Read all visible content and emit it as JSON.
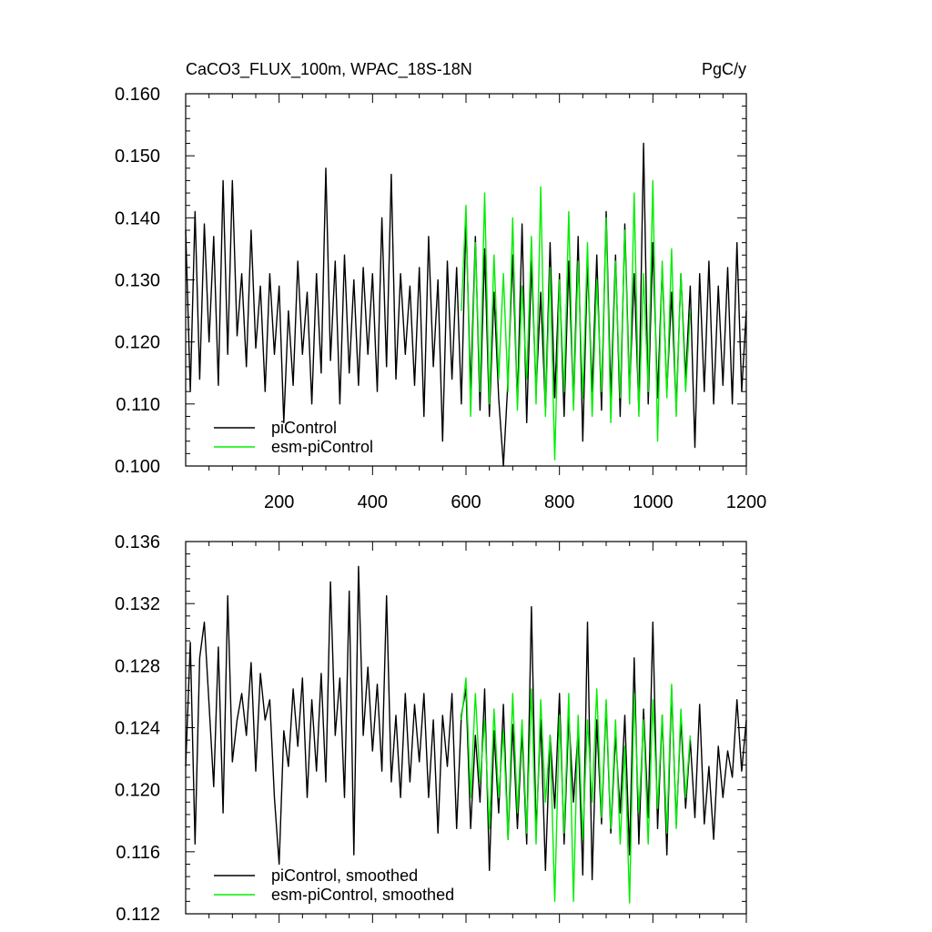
{
  "colors": {
    "piControl": "#000000",
    "esm_piControl": "#00ee00",
    "background": "#ffffff"
  },
  "chart_data": [
    {
      "type": "line",
      "title": "CaCO3_FLUX_100m, WPAC_18S-18N",
      "units": "PgC/y",
      "xlabel": "",
      "ylabel": "",
      "xlim": [
        0,
        1200
      ],
      "ylim": [
        0.1,
        0.16
      ],
      "xticks": [
        200,
        400,
        600,
        800,
        1000,
        1200
      ],
      "xtick_labels": [
        "200",
        "400",
        "600",
        "800",
        "1000",
        "1200"
      ],
      "yticks": [
        0.1,
        0.11,
        0.12,
        0.13,
        0.14,
        0.15,
        0.16
      ],
      "ytick_labels": [
        "0.100",
        "0.110",
        "0.120",
        "0.130",
        "0.140",
        "0.150",
        "0.160"
      ],
      "grid": false,
      "legend_position": "bottom-left",
      "series": [
        {
          "name": "piControl",
          "color": "#000000",
          "x": [
            0,
            10,
            20,
            30,
            40,
            50,
            60,
            70,
            80,
            90,
            100,
            110,
            120,
            130,
            140,
            150,
            160,
            170,
            180,
            190,
            200,
            210,
            220,
            230,
            240,
            250,
            260,
            270,
            280,
            290,
            300,
            310,
            320,
            330,
            340,
            350,
            360,
            370,
            380,
            390,
            400,
            410,
            420,
            430,
            440,
            450,
            460,
            470,
            480,
            490,
            500,
            510,
            520,
            530,
            540,
            550,
            560,
            570,
            580,
            590,
            600,
            610,
            620,
            630,
            640,
            650,
            660,
            670,
            680,
            690,
            700,
            710,
            720,
            730,
            740,
            750,
            760,
            770,
            780,
            790,
            800,
            810,
            820,
            830,
            840,
            850,
            860,
            870,
            880,
            890,
            900,
            910,
            920,
            930,
            940,
            950,
            960,
            970,
            980,
            990,
            1000,
            1010,
            1020,
            1030,
            1040,
            1050,
            1060,
            1070,
            1080,
            1090,
            1100,
            1110,
            1120,
            1130,
            1140,
            1150,
            1160,
            1170,
            1180,
            1190,
            1200
          ],
          "values": [
            0.138,
            0.112,
            0.141,
            0.114,
            0.139,
            0.12,
            0.137,
            0.113,
            0.146,
            0.118,
            0.146,
            0.121,
            0.131,
            0.116,
            0.138,
            0.119,
            0.129,
            0.112,
            0.131,
            0.118,
            0.129,
            0.107,
            0.125,
            0.113,
            0.133,
            0.118,
            0.128,
            0.11,
            0.131,
            0.115,
            0.148,
            0.117,
            0.133,
            0.11,
            0.134,
            0.115,
            0.13,
            0.113,
            0.132,
            0.118,
            0.131,
            0.112,
            0.14,
            0.116,
            0.147,
            0.114,
            0.131,
            0.118,
            0.129,
            0.113,
            0.132,
            0.108,
            0.137,
            0.116,
            0.13,
            0.104,
            0.133,
            0.114,
            0.132,
            0.11,
            0.14,
            0.112,
            0.137,
            0.109,
            0.135,
            0.108,
            0.128,
            0.111,
            0.1,
            0.114,
            0.134,
            0.11,
            0.139,
            0.107,
            0.133,
            0.112,
            0.128,
            0.109,
            0.136,
            0.111,
            0.131,
            0.108,
            0.133,
            0.11,
            0.137,
            0.104,
            0.133,
            0.112,
            0.134,
            0.109,
            0.141,
            0.111,
            0.134,
            0.108,
            0.139,
            0.112,
            0.131,
            0.109,
            0.152,
            0.11,
            0.136,
            0.111,
            0.132,
            0.112,
            0.128,
            0.109,
            0.131,
            0.114,
            0.129,
            0.103,
            0.131,
            0.112,
            0.133,
            0.11,
            0.129,
            0.113,
            0.132,
            0.11,
            0.136,
            0.112,
            0.125
          ]
        },
        {
          "name": "esm-piControl",
          "color": "#00ee00",
          "x": [
            590,
            600,
            610,
            620,
            630,
            640,
            650,
            660,
            670,
            680,
            690,
            700,
            710,
            720,
            730,
            740,
            750,
            760,
            770,
            780,
            790,
            800,
            810,
            820,
            830,
            840,
            850,
            860,
            870,
            880,
            890,
            900,
            910,
            920,
            930,
            940,
            950,
            960,
            970,
            980,
            990,
            1000,
            1010,
            1020,
            1030,
            1040,
            1050,
            1060,
            1070,
            1080
          ],
          "values": [
            0.125,
            0.142,
            0.108,
            0.136,
            0.112,
            0.144,
            0.11,
            0.134,
            0.114,
            0.131,
            0.112,
            0.14,
            0.109,
            0.129,
            0.114,
            0.137,
            0.11,
            0.145,
            0.108,
            0.132,
            0.101,
            0.13,
            0.112,
            0.141,
            0.109,
            0.133,
            0.111,
            0.136,
            0.108,
            0.13,
            0.112,
            0.14,
            0.107,
            0.133,
            0.111,
            0.138,
            0.11,
            0.144,
            0.108,
            0.131,
            0.112,
            0.146,
            0.104,
            0.133,
            0.111,
            0.135,
            0.108,
            0.131,
            0.112,
            0.125
          ]
        }
      ]
    },
    {
      "type": "line",
      "title": "",
      "xlabel": "",
      "ylabel": "",
      "xlim": [
        0,
        1200
      ],
      "ylim": [
        0.112,
        0.136
      ],
      "xticks": [
        200,
        400,
        600,
        800,
        1000,
        1200
      ],
      "xtick_labels": [],
      "yticks": [
        0.112,
        0.116,
        0.12,
        0.124,
        0.128,
        0.132,
        0.136
      ],
      "ytick_labels": [
        "0.112",
        "0.116",
        "0.120",
        "0.124",
        "0.128",
        "0.132",
        "0.136"
      ],
      "grid": false,
      "legend_position": "bottom-left",
      "series": [
        {
          "name": "piControl, smoothed",
          "color": "#000000",
          "x": [
            0,
            10,
            20,
            30,
            40,
            50,
            60,
            70,
            80,
            90,
            100,
            110,
            120,
            130,
            140,
            150,
            160,
            170,
            180,
            190,
            200,
            210,
            220,
            230,
            240,
            250,
            260,
            270,
            280,
            290,
            300,
            310,
            320,
            330,
            340,
            350,
            360,
            370,
            380,
            390,
            400,
            410,
            420,
            430,
            440,
            450,
            460,
            470,
            480,
            490,
            500,
            510,
            520,
            530,
            540,
            550,
            560,
            570,
            580,
            590,
            600,
            610,
            620,
            630,
            640,
            650,
            660,
            670,
            680,
            690,
            700,
            710,
            720,
            730,
            740,
            750,
            760,
            770,
            780,
            790,
            800,
            810,
            820,
            830,
            840,
            850,
            860,
            870,
            880,
            890,
            900,
            910,
            920,
            930,
            940,
            950,
            960,
            970,
            980,
            990,
            1000,
            1010,
            1020,
            1030,
            1040,
            1050,
            1060,
            1070,
            1080,
            1090,
            1100,
            1110,
            1120,
            1130,
            1140,
            1150,
            1160,
            1170,
            1180,
            1190,
            1200
          ],
          "values": [
            0.1215,
            0.1295,
            0.1165,
            0.1285,
            0.1308,
            0.1255,
            0.1202,
            0.1292,
            0.1185,
            0.1325,
            0.1218,
            0.1245,
            0.1262,
            0.1235,
            0.1282,
            0.1212,
            0.1275,
            0.1245,
            0.1258,
            0.1195,
            0.1152,
            0.1238,
            0.1215,
            0.1265,
            0.1228,
            0.1272,
            0.1195,
            0.1258,
            0.1212,
            0.1275,
            0.1205,
            0.1334,
            0.1235,
            0.1272,
            0.1195,
            0.1328,
            0.1158,
            0.1344,
            0.1235,
            0.1279,
            0.1225,
            0.1268,
            0.1212,
            0.1325,
            0.1205,
            0.1248,
            0.1195,
            0.1262,
            0.1205,
            0.1255,
            0.1218,
            0.1262,
            0.1195,
            0.1245,
            0.1172,
            0.1248,
            0.1215,
            0.1262,
            0.1175,
            0.1248,
            0.1265,
            0.1175,
            0.1235,
            0.1192,
            0.1265,
            0.1148,
            0.1238,
            0.1185,
            0.1255,
            0.1168,
            0.1242,
            0.1175,
            0.1238,
            0.1165,
            0.1318,
            0.1172,
            0.1245,
            0.1148,
            0.1235,
            0.1188,
            0.1262,
            0.1165,
            0.1248,
            0.1192,
            0.1238,
            0.1145,
            0.1308,
            0.1142,
            0.1245,
            0.1178,
            0.1255,
            0.1172,
            0.1235,
            0.1185,
            0.1248,
            0.1158,
            0.1285,
            0.1165,
            0.1252,
            0.1182,
            0.1308,
            0.1175,
            0.1248,
            0.1158,
            0.1265,
            0.1178,
            0.1245,
            0.1188,
            0.1232,
            0.1182,
            0.1255,
            0.1178,
            0.1215,
            0.1168,
            0.1228,
            0.1195,
            0.1225,
            0.1208,
            0.1258,
            0.1212,
            0.1245
          ]
        },
        {
          "name": "esm-piControl, smoothed",
          "color": "#00ee00",
          "x": [
            590,
            600,
            610,
            620,
            630,
            640,
            650,
            660,
            670,
            680,
            690,
            700,
            710,
            720,
            730,
            740,
            750,
            760,
            770,
            780,
            790,
            800,
            810,
            820,
            830,
            840,
            850,
            860,
            870,
            880,
            890,
            900,
            910,
            920,
            930,
            940,
            950,
            960,
            970,
            980,
            990,
            1000,
            1010,
            1020,
            1030,
            1040,
            1050,
            1060,
            1070,
            1080
          ],
          "values": [
            0.1245,
            0.1272,
            0.1195,
            0.1262,
            0.1205,
            0.1245,
            0.1175,
            0.1252,
            0.1195,
            0.1238,
            0.1168,
            0.1262,
            0.1185,
            0.1245,
            0.1172,
            0.1265,
            0.1165,
            0.1258,
            0.1192,
            0.1235,
            0.1128,
            0.1248,
            0.1172,
            0.1262,
            0.1128,
            0.1248,
            0.1168,
            0.1245,
            0.1192,
            0.1265,
            0.1182,
            0.1258,
            0.1175,
            0.1245,
            0.1165,
            0.1228,
            0.1127,
            0.1262,
            0.1185,
            0.1245,
            0.1165,
            0.1258,
            0.1188,
            0.1248,
            0.1172,
            0.1268,
            0.1175,
            0.1252,
            0.1195,
            0.1235
          ]
        }
      ]
    }
  ]
}
